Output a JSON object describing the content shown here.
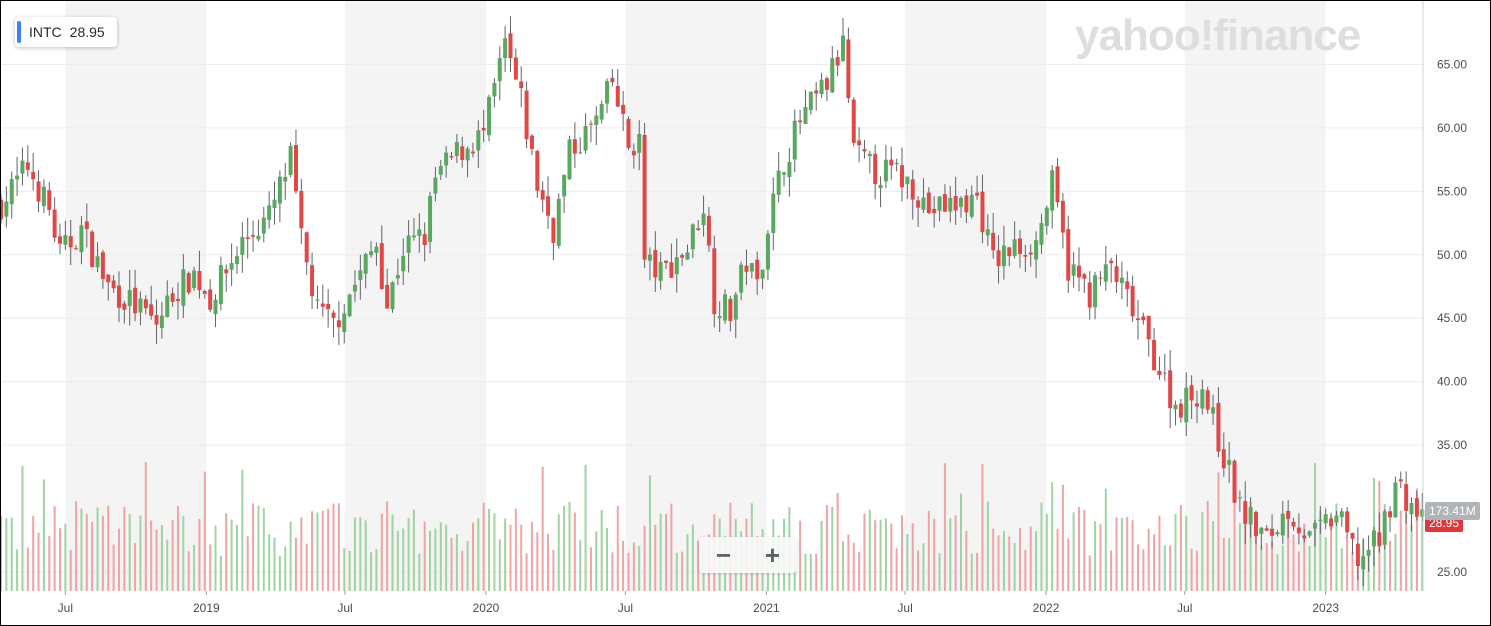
{
  "ticker": {
    "symbol": "INTC",
    "price": "28.95"
  },
  "watermark": {
    "brand": "yahoo!finance"
  },
  "zoom": {
    "minus": "−",
    "plus": "+"
  },
  "tags": {
    "volume": "173.41M",
    "last": "28.95"
  },
  "colors": {
    "up": "#5aa85f",
    "down": "#e04848",
    "up_vol": "#9fd3a2",
    "down_vol": "#f0a3a3",
    "band": "#f4f4f4",
    "grid": "#ececec"
  },
  "chart_data": {
    "type": "candlestick",
    "title": "",
    "x_ticks": [
      {
        "label": "Jul",
        "date": "2018-07-01"
      },
      {
        "label": "2019",
        "date": "2019-01-01"
      },
      {
        "label": "Jul",
        "date": "2019-07-01"
      },
      {
        "label": "2020",
        "date": "2020-01-01"
      },
      {
        "label": "Jul",
        "date": "2020-07-01"
      },
      {
        "label": "2021",
        "date": "2021-01-01"
      },
      {
        "label": "Jul",
        "date": "2021-07-01"
      },
      {
        "label": "2022",
        "date": "2022-01-01"
      },
      {
        "label": "Jul",
        "date": "2022-07-01"
      },
      {
        "label": "2023",
        "date": "2023-01-01"
      }
    ],
    "x_range": [
      "2018-04-08",
      "2023-05-08"
    ],
    "y_ticks": [
      "65.00",
      "60.00",
      "55.00",
      "50.00",
      "45.00",
      "40.00",
      "35.00",
      "25.00"
    ],
    "y_range": [
      23.5,
      70.0
    ],
    "last_price": 28.95,
    "last_volume": "173.41M",
    "price_path": [
      [
        "2018-04-08",
        54.0
      ],
      [
        "2018-05-13",
        57.0
      ],
      [
        "2018-06-10",
        53.5
      ],
      [
        "2018-06-24",
        50.0
      ],
      [
        "2018-07-22",
        52.0
      ],
      [
        "2018-08-26",
        47.5
      ],
      [
        "2018-09-30",
        46.0
      ],
      [
        "2018-10-28",
        44.5
      ],
      [
        "2018-11-18",
        47.0
      ],
      [
        "2018-12-16",
        48.5
      ],
      [
        "2019-01-06",
        46.5
      ],
      [
        "2019-02-17",
        51.0
      ],
      [
        "2019-03-24",
        53.0
      ],
      [
        "2019-04-21",
        57.5
      ],
      [
        "2019-05-05",
        51.0
      ],
      [
        "2019-05-26",
        45.5
      ],
      [
        "2019-06-16",
        44.5
      ],
      [
        "2019-07-21",
        48.5
      ],
      [
        "2019-08-11",
        51.0
      ],
      [
        "2019-08-25",
        46.0
      ],
      [
        "2019-09-15",
        50.5
      ],
      [
        "2019-10-13",
        51.5
      ],
      [
        "2019-10-27",
        56.0
      ],
      [
        "2019-11-24",
        58.0
      ],
      [
        "2019-12-29",
        59.5
      ],
      [
        "2020-01-12",
        63.0
      ],
      [
        "2020-01-26",
        66.5
      ],
      [
        "2020-02-16",
        62.0
      ],
      [
        "2020-03-08",
        55.5
      ],
      [
        "2020-03-29",
        52.0
      ],
      [
        "2020-04-19",
        58.0
      ],
      [
        "2020-05-24",
        60.5
      ],
      [
        "2020-06-14",
        63.5
      ],
      [
        "2020-07-05",
        58.5
      ],
      [
        "2020-07-19",
        59.0
      ],
      [
        "2020-07-26",
        49.5
      ],
      [
        "2020-08-16",
        48.5
      ],
      [
        "2020-09-20",
        50.5
      ],
      [
        "2020-10-11",
        54.0
      ],
      [
        "2020-10-25",
        46.5
      ],
      [
        "2020-11-15",
        45.5
      ],
      [
        "2020-12-06",
        49.5
      ],
      [
        "2020-12-20",
        47.5
      ],
      [
        "2021-01-03",
        52.5
      ],
      [
        "2021-01-24",
        57.5
      ],
      [
        "2021-02-14",
        60.5
      ],
      [
        "2021-03-21",
        63.5
      ],
      [
        "2021-04-11",
        66.5
      ],
      [
        "2021-04-25",
        58.0
      ],
      [
        "2021-05-23",
        56.5
      ],
      [
        "2021-06-13",
        56.5
      ],
      [
        "2021-07-11",
        55.5
      ],
      [
        "2021-08-01",
        53.5
      ],
      [
        "2021-09-12",
        54.0
      ],
      [
        "2021-10-03",
        54.5
      ],
      [
        "2021-10-24",
        49.5
      ],
      [
        "2021-11-21",
        50.5
      ],
      [
        "2021-12-19",
        51.0
      ],
      [
        "2022-01-09",
        55.5
      ],
      [
        "2022-01-30",
        49.0
      ],
      [
        "2022-02-27",
        47.0
      ],
      [
        "2022-03-27",
        49.0
      ],
      [
        "2022-04-24",
        45.5
      ],
      [
        "2022-05-22",
        42.0
      ],
      [
        "2022-06-19",
        38.0
      ],
      [
        "2022-07-24",
        39.5
      ],
      [
        "2022-08-14",
        35.5
      ],
      [
        "2022-09-11",
        30.0
      ],
      [
        "2022-10-16",
        27.5
      ],
      [
        "2022-11-13",
        30.0
      ],
      [
        "2022-12-11",
        27.5
      ],
      [
        "2023-01-15",
        29.5
      ],
      [
        "2023-02-12",
        26.0
      ],
      [
        "2023-03-12",
        27.5
      ],
      [
        "2023-04-02",
        32.0
      ],
      [
        "2023-05-07",
        29.0
      ]
    ]
  }
}
